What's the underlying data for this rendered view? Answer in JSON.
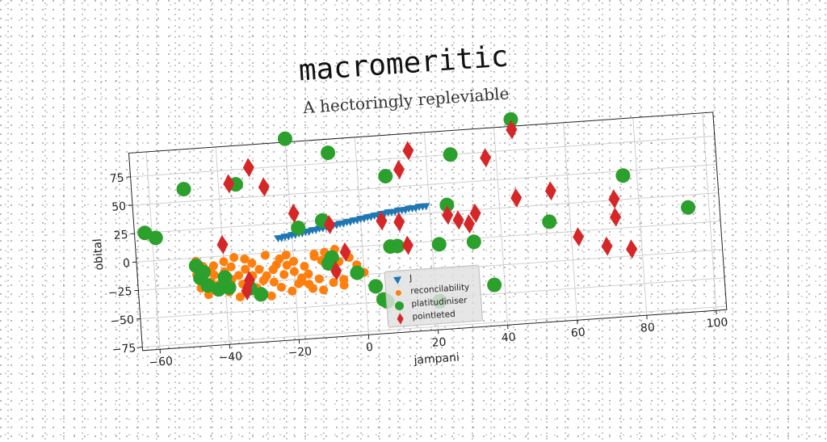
{
  "chart_data": {
    "type": "scatter",
    "title": "macromeritic",
    "subtitle": "A hectoringly repleviable",
    "xlabel": "jampani",
    "ylabel": "obital",
    "xlim": [
      -65,
      103
    ],
    "ylim": [
      -78,
      96
    ],
    "xticks": [
      -60,
      -40,
      -20,
      0,
      20,
      40,
      60,
      80,
      100
    ],
    "yticks": [
      -75,
      -50,
      -25,
      0,
      25,
      50,
      75
    ],
    "grid": true,
    "legend_position": "lower-center",
    "series": [
      {
        "name": "J",
        "marker": "triangle-down",
        "color": "#1f77b4",
        "points": [
          [
            -24,
            12
          ],
          [
            -23,
            12
          ],
          [
            -22,
            13
          ],
          [
            -21,
            13
          ],
          [
            -20,
            14
          ],
          [
            -19,
            14
          ],
          [
            -18,
            15
          ],
          [
            -17,
            15
          ],
          [
            -16,
            16
          ],
          [
            -15,
            16
          ],
          [
            -14,
            17
          ],
          [
            -13,
            17
          ],
          [
            -12,
            18
          ],
          [
            -11,
            18
          ],
          [
            -10,
            19
          ],
          [
            -9,
            19
          ],
          [
            -8,
            20
          ],
          [
            -7,
            20
          ],
          [
            -6,
            21
          ],
          [
            -5,
            21
          ],
          [
            -4,
            22
          ],
          [
            -3,
            22
          ],
          [
            -2,
            23
          ],
          [
            -1,
            23
          ],
          [
            0,
            24
          ],
          [
            1,
            24
          ],
          [
            2,
            25
          ],
          [
            3,
            25
          ],
          [
            4,
            26
          ],
          [
            5,
            26
          ],
          [
            6,
            27
          ],
          [
            7,
            27
          ],
          [
            8,
            28
          ],
          [
            9,
            28
          ],
          [
            10,
            28
          ],
          [
            11,
            29
          ],
          [
            12,
            29
          ],
          [
            13,
            29
          ],
          [
            14,
            30
          ],
          [
            15,
            30
          ],
          [
            16,
            30
          ],
          [
            17,
            31
          ],
          [
            18,
            31
          ],
          [
            19,
            31
          ]
        ]
      },
      {
        "name": "reconcilability",
        "marker": "circle-small",
        "color": "#ff7f0e",
        "points": [
          [
            -48,
            -3
          ],
          [
            -46,
            -8
          ],
          [
            -44,
            -12
          ],
          [
            -43,
            -16
          ],
          [
            -40,
            -5
          ],
          [
            -38,
            -10
          ],
          [
            -36,
            -18
          ],
          [
            -34,
            -4
          ],
          [
            -32,
            -8
          ],
          [
            -30,
            -14
          ],
          [
            -28,
            -20
          ],
          [
            -26,
            -26
          ],
          [
            -24,
            -6
          ],
          [
            -22,
            -12
          ],
          [
            -20,
            -18
          ],
          [
            -18,
            -24
          ],
          [
            -16,
            -30
          ],
          [
            -14,
            -4
          ],
          [
            -12,
            -10
          ],
          [
            -10,
            -15
          ],
          [
            -8,
            -22
          ],
          [
            -6,
            -28
          ],
          [
            -4,
            -9
          ],
          [
            -2,
            -16
          ],
          [
            0,
            -23
          ],
          [
            -47,
            -27
          ],
          [
            -45,
            -33
          ],
          [
            -42,
            -25
          ],
          [
            -39,
            -32
          ],
          [
            -36,
            -37
          ],
          [
            -33,
            -28
          ],
          [
            -30,
            -33
          ],
          [
            -27,
            -38
          ],
          [
            -24,
            -31
          ],
          [
            -21,
            -35
          ],
          [
            -18,
            -27
          ],
          [
            -15,
            -34
          ],
          [
            -12,
            -36
          ],
          [
            -9,
            -30
          ],
          [
            -6,
            -33
          ],
          [
            -44,
            -22
          ],
          [
            -41,
            -28
          ],
          [
            -38,
            -21
          ],
          [
            -35,
            -26
          ],
          [
            -32,
            -19
          ],
          [
            -29,
            -24
          ],
          [
            -26,
            -15
          ],
          [
            -23,
            -20
          ],
          [
            -20,
            -9
          ],
          [
            -17,
            -14
          ],
          [
            -14,
            -6
          ],
          [
            -11,
            -3
          ],
          [
            -8,
            -1
          ],
          [
            -5,
            -4
          ],
          [
            -2,
            -20
          ],
          [
            -48,
            -15
          ],
          [
            -46,
            -20
          ],
          [
            -43,
            -8
          ],
          [
            -40,
            -14
          ],
          [
            -37,
            -2
          ],
          [
            -34,
            -13
          ],
          [
            -31,
            -30
          ],
          [
            -28,
            -2
          ],
          [
            -25,
            -11
          ],
          [
            -22,
            -3
          ],
          [
            -19,
            -29
          ],
          [
            -16,
            -21
          ],
          [
            -13,
            -26
          ],
          [
            -10,
            -8
          ],
          [
            -7,
            -12
          ]
        ]
      },
      {
        "name": "platitudiniser",
        "marker": "circle",
        "color": "#2ca02c",
        "points": [
          [
            -62,
            25
          ],
          [
            -59,
            20
          ],
          [
            -50,
            61
          ],
          [
            -48,
            -7
          ],
          [
            -47,
            -18
          ],
          [
            -46,
            -13
          ],
          [
            -45,
            -25
          ],
          [
            -42,
            -29
          ],
          [
            -40,
            -19
          ],
          [
            -39,
            -28
          ],
          [
            -35,
            62
          ],
          [
            -33,
            -30
          ],
          [
            -30,
            -36
          ],
          [
            -20,
            99
          ],
          [
            -18,
            20
          ],
          [
            -11,
            25
          ],
          [
            -10,
            -13
          ],
          [
            -9,
            -8
          ],
          [
            -8,
            84
          ],
          [
            -2,
            -23
          ],
          [
            3,
            -36
          ],
          [
            5,
            -48
          ],
          [
            6,
            -50
          ],
          [
            8,
            -2
          ],
          [
            8,
            60
          ],
          [
            10,
            -2
          ],
          [
            21,
            -53
          ],
          [
            22,
            -3
          ],
          [
            25,
            31
          ],
          [
            27,
            75
          ],
          [
            32,
            -3
          ],
          [
            37,
            -42
          ],
          [
            45,
            102
          ],
          [
            54,
            10
          ],
          [
            76,
            46
          ],
          [
            94,
            14
          ]
        ]
      },
      {
        "name": "pointleted",
        "marker": "diamond",
        "color": "#d62728",
        "points": [
          [
            -40,
            10
          ],
          [
            -37,
            63
          ],
          [
            -34,
            -32
          ],
          [
            -33,
            -23
          ],
          [
            -31,
            76
          ],
          [
            -27,
            58
          ],
          [
            -19,
            33
          ],
          [
            -9,
            21
          ],
          [
            -8,
            -20
          ],
          [
            -5,
            -4
          ],
          [
            6,
            21
          ],
          [
            11,
            19
          ],
          [
            12,
            65
          ],
          [
            13,
            -2
          ],
          [
            15,
            81
          ],
          [
            25,
            22
          ],
          [
            28,
            17
          ],
          [
            31,
            13
          ],
          [
            33,
            22
          ],
          [
            37,
            70
          ],
          [
            45,
            33
          ],
          [
            45,
            93
          ],
          [
            55,
            37
          ],
          [
            62,
            -5
          ],
          [
            70,
            -15
          ],
          [
            73,
            10
          ],
          [
            73,
            26
          ],
          [
            77,
            -19
          ]
        ]
      }
    ]
  }
}
